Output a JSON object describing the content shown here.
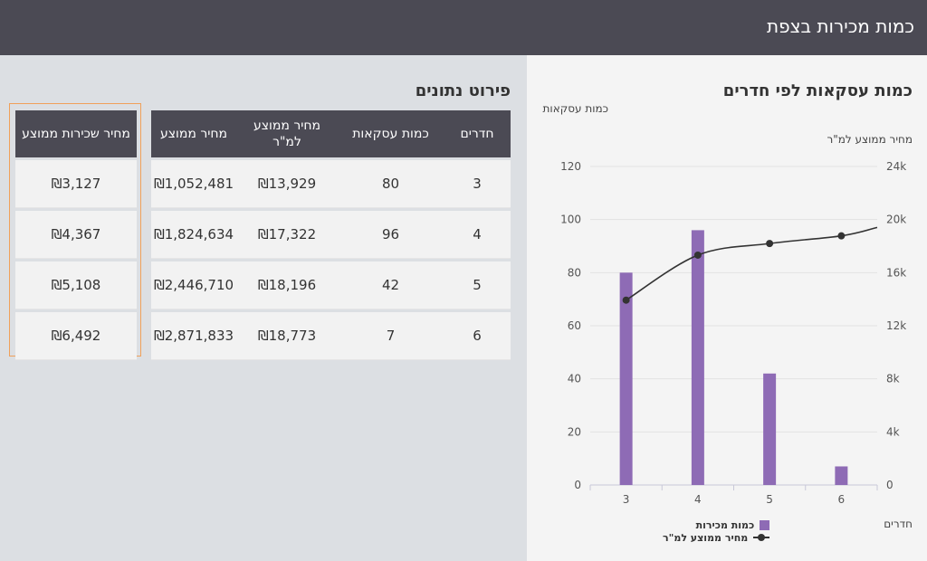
{
  "header": {
    "title": "כמות מכירות בצפת"
  },
  "chart": {
    "title": "כמות עסקאות לפי חדרים",
    "y_left_label": "כמות עסקאות",
    "y_right_label": "מחיר ממוצע למ\"ר",
    "x_label": "חדרים",
    "legend": {
      "bars": "כמות מכירות",
      "line": "מחיר ממוצע למ\"ר"
    }
  },
  "chart_data": {
    "type": "bar",
    "categories": [
      "3",
      "4",
      "5",
      "6"
    ],
    "series": [
      {
        "name": "כמות מכירות",
        "type": "bar",
        "axis": "left",
        "values": [
          80,
          96,
          42,
          7
        ]
      },
      {
        "name": "מחיר ממוצע למ\"ר",
        "type": "line",
        "axis": "right",
        "values": [
          13929,
          17322,
          18196,
          18773
        ]
      }
    ],
    "ylim_left": [
      0,
      120
    ],
    "ylim_right": [
      0,
      24000
    ],
    "yticks_left": [
      "0",
      "20",
      "40",
      "60",
      "80",
      "100",
      "120"
    ],
    "yticks_right": [
      "0",
      "4k",
      "8k",
      "12k",
      "16k",
      "20k",
      "24k"
    ],
    "grid": true,
    "legend_position": "bottom",
    "colors": {
      "bar": "#8e6bb5",
      "line": "#333333"
    }
  },
  "table": {
    "title": "פירוט נתונים",
    "headers": [
      "חדרים",
      "כמות עסקאות",
      "מחיר ממוצע למ\"ר",
      "מחיר ממוצע"
    ],
    "rows": [
      [
        "3",
        "80",
        "₪13,929",
        "₪1,052,481"
      ],
      [
        "4",
        "96",
        "₪17,322",
        "₪1,824,634"
      ],
      [
        "5",
        "42",
        "₪18,196",
        "₪2,446,710"
      ],
      [
        "6",
        "7",
        "₪18,773",
        "₪2,871,833"
      ]
    ]
  },
  "rent_table": {
    "header": "מחיר שכירות ממוצע",
    "rows": [
      "₪3,127",
      "₪4,367",
      "₪5,108",
      "₪6,492"
    ]
  }
}
